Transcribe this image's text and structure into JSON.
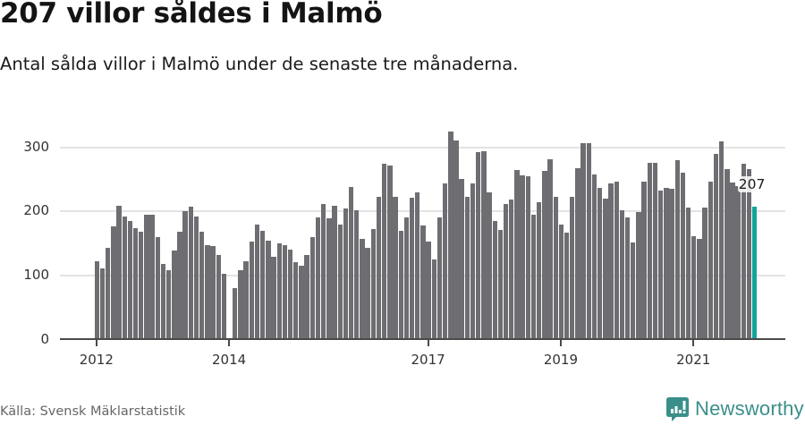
{
  "header": {
    "title": "207 villor såldes i Malmö",
    "subtitle": "Antal sålda villor i Malmö under de senaste tre månaderna."
  },
  "footer": {
    "source": "Källa: Svensk Mäklarstatistik",
    "brand": "Newsworthy",
    "brand_icon": "newsworthy-logo-icon"
  },
  "colors": {
    "bar": "#6e6d72",
    "highlight": "#12a39a",
    "grid": "#e3e3e3",
    "axis": "#4a4a4a",
    "brand": "#3a8f8a"
  },
  "chart_data": {
    "type": "bar",
    "title": "207 villor såldes i Malmö",
    "subtitle": "Antal sålda villor i Malmö under de senaste tre månaderna.",
    "xlabel": "",
    "ylabel": "",
    "ylim": [
      0,
      330
    ],
    "yticks": [
      0,
      100,
      200,
      300
    ],
    "xticks": [
      {
        "label": "2012",
        "index": 0
      },
      {
        "label": "2014",
        "index": 24
      },
      {
        "label": "2017",
        "index": 60
      },
      {
        "label": "2019",
        "index": 84
      },
      {
        "label": "2021",
        "index": 108
      }
    ],
    "grid": true,
    "legend": "none",
    "x_start": "2012-01",
    "x_step": "month",
    "values": [
      122,
      111,
      143,
      177,
      209,
      192,
      185,
      174,
      168,
      195,
      195,
      160,
      118,
      108,
      139,
      168,
      200,
      207,
      192,
      168,
      147,
      146,
      132,
      102,
      null,
      80,
      108,
      122,
      153,
      180,
      170,
      154,
      129,
      150,
      147,
      140,
      121,
      115,
      132,
      160,
      191,
      212,
      189,
      209,
      180,
      205,
      238,
      202,
      157,
      143,
      172,
      223,
      275,
      272,
      223,
      170,
      191,
      221,
      230,
      178,
      153,
      125,
      191,
      244,
      325,
      311,
      251,
      223,
      244,
      293,
      294,
      230,
      185,
      171,
      212,
      219,
      265,
      257,
      255,
      195,
      214,
      263,
      282,
      223,
      180,
      167,
      223,
      268,
      307,
      307,
      258,
      237,
      220,
      244,
      246,
      202,
      191,
      151,
      199,
      246,
      276,
      276,
      233,
      237,
      235,
      280,
      260,
      206,
      161,
      157,
      206,
      246,
      290,
      309,
      266,
      245,
      239,
      275,
      266,
      207
    ],
    "highlight_index": 119,
    "annotation": {
      "text": "207",
      "index": 119
    }
  }
}
